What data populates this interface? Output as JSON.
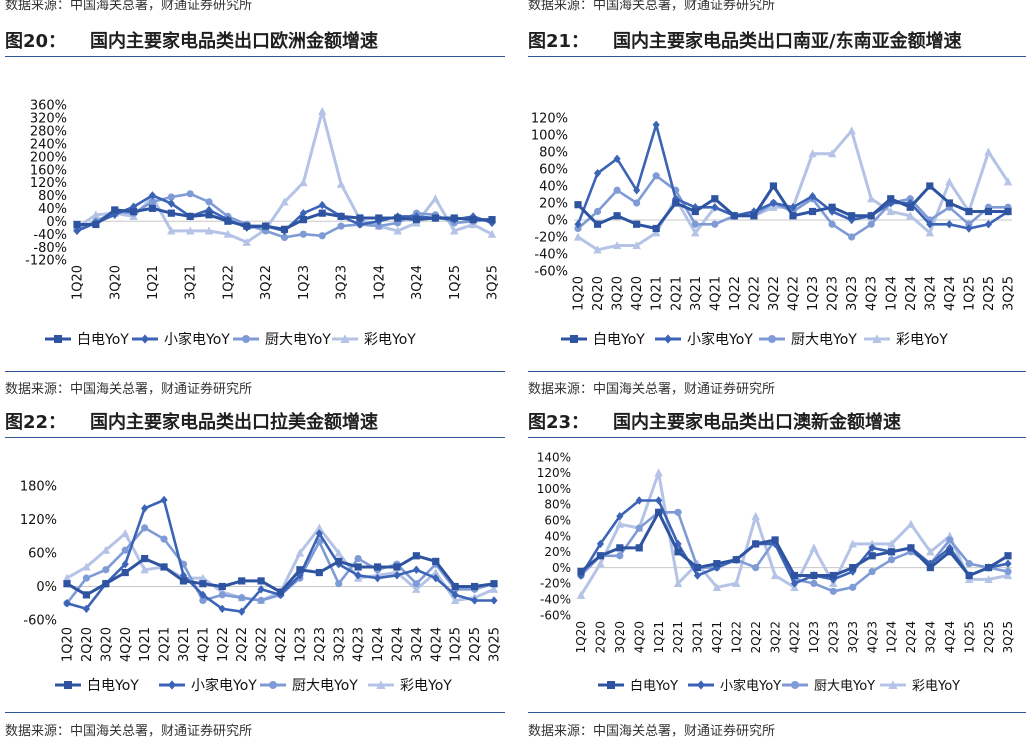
{
  "header_sources": {
    "left": "数据来源：中国海关总署，财通证券研究所",
    "right": "数据来源：中国海关总署，财通证券研究所"
  },
  "series_colors": {
    "白电YoY": "#2e54a1",
    "小家电YoY": "#3b63b6",
    "厨大电YoY": "#7e9bd6",
    "彩电YoY": "#b4c3e6"
  },
  "chart_data": [
    {
      "id": "fig20",
      "number": "图20：",
      "title": "国内主要家电品类出口欧洲金额增速",
      "type": "line",
      "source": "数据来源：中国海关总署，财通证券研究所",
      "x": [
        "1Q20",
        "2Q20",
        "3Q20",
        "4Q20",
        "1Q21",
        "2Q21",
        "3Q21",
        "4Q21",
        "1Q22",
        "2Q22",
        "3Q22",
        "4Q22",
        "1Q23",
        "2Q23",
        "3Q23",
        "4Q23",
        "1Q24",
        "2Q24",
        "3Q24",
        "4Q24",
        "1Q25",
        "2Q25",
        "3Q25"
      ],
      "x_tick_labels": [
        "1Q20",
        "3Q20",
        "1Q21",
        "3Q21",
        "1Q22",
        "3Q22",
        "1Q23",
        "3Q23",
        "1Q24",
        "3Q24",
        "1Q25",
        "3Q25"
      ],
      "ylim": [
        -120,
        360
      ],
      "yticks": [
        -120,
        -80,
        -40,
        0,
        40,
        80,
        120,
        160,
        200,
        240,
        280,
        320,
        360
      ],
      "ytick_labels": [
        "-120%",
        "-80%",
        "-40%",
        "0%",
        "40%",
        "80%",
        "120%",
        "160%",
        "200%",
        "240%",
        "280%",
        "320%",
        "360%"
      ],
      "series": [
        {
          "name": "白电YoY",
          "marker": "square",
          "values": [
            -10,
            -10,
            35,
            30,
            40,
            25,
            15,
            20,
            0,
            -15,
            -15,
            -25,
            5,
            25,
            15,
            10,
            10,
            10,
            5,
            10,
            10,
            5,
            5
          ]
        },
        {
          "name": "小家电YoY",
          "marker": "diamond",
          "values": [
            -30,
            -5,
            20,
            45,
            80,
            55,
            15,
            35,
            5,
            -20,
            -15,
            -30,
            25,
            50,
            15,
            -10,
            0,
            15,
            15,
            10,
            5,
            15,
            -5
          ]
        },
        {
          "name": "厨大电YoY",
          "marker": "circle",
          "values": [
            -25,
            0,
            30,
            25,
            60,
            75,
            85,
            60,
            15,
            -10,
            -30,
            -50,
            -40,
            -45,
            -15,
            -10,
            -15,
            -5,
            25,
            20,
            -5,
            0,
            5
          ]
        },
        {
          "name": "彩电YoY",
          "marker": "triangle",
          "values": [
            -20,
            20,
            25,
            15,
            75,
            -30,
            -30,
            -30,
            -40,
            -65,
            -25,
            60,
            120,
            340,
            115,
            5,
            -15,
            -30,
            -5,
            70,
            -30,
            -10,
            -40
          ]
        }
      ]
    },
    {
      "id": "fig21",
      "number": "图21：",
      "title": "国内主要家电品类出口南亚/东南亚金额增速",
      "type": "line",
      "source": "数据来源：中国海关总署，财通证券研究所",
      "x": [
        "1Q20",
        "2Q20",
        "3Q20",
        "4Q20",
        "1Q21",
        "2Q21",
        "3Q21",
        "4Q21",
        "1Q22",
        "2Q22",
        "3Q22",
        "4Q22",
        "1Q23",
        "2Q23",
        "3Q23",
        "4Q23",
        "1Q24",
        "2Q24",
        "3Q24",
        "4Q24",
        "1Q25",
        "2Q25",
        "3Q25"
      ],
      "x_tick_labels": [
        "1Q20",
        "2Q20",
        "3Q20",
        "4Q20",
        "1Q21",
        "2Q21",
        "3Q21",
        "4Q21",
        "1Q22",
        "2Q22",
        "3Q22",
        "4Q22",
        "1Q23",
        "2Q23",
        "3Q23",
        "4Q23",
        "1Q24",
        "2Q24",
        "3Q24",
        "4Q24",
        "1Q25",
        "2Q25",
        "3Q25"
      ],
      "ylim": [
        -60,
        120
      ],
      "yticks": [
        -60,
        -40,
        -20,
        0,
        20,
        40,
        60,
        80,
        100,
        120
      ],
      "ytick_labels": [
        "-60%",
        "-40%",
        "-20%",
        "0%",
        "20%",
        "40%",
        "60%",
        "80%",
        "100%",
        "120%"
      ],
      "series": [
        {
          "name": "白电YoY",
          "marker": "square",
          "values": [
            18,
            -5,
            5,
            -5,
            -10,
            20,
            10,
            25,
            5,
            5,
            40,
            5,
            10,
            15,
            5,
            5,
            25,
            15,
            40,
            20,
            10,
            10,
            10
          ]
        },
        {
          "name": "小家电YoY",
          "marker": "diamond",
          "values": [
            -5,
            55,
            72,
            35,
            112,
            25,
            15,
            15,
            5,
            10,
            20,
            15,
            28,
            10,
            0,
            5,
            20,
            20,
            -5,
            -5,
            -10,
            -5,
            10
          ]
        },
        {
          "name": "厨大电YoY",
          "marker": "circle",
          "values": [
            -10,
            10,
            35,
            20,
            52,
            35,
            -5,
            -5,
            5,
            5,
            20,
            10,
            25,
            -5,
            -20,
            -5,
            20,
            25,
            0,
            15,
            -5,
            15,
            15
          ]
        },
        {
          "name": "彩电YoY",
          "marker": "triangle",
          "values": [
            -20,
            -35,
            -30,
            -30,
            -15,
            25,
            -15,
            15,
            5,
            5,
            15,
            15,
            78,
            78,
            105,
            25,
            10,
            5,
            -15,
            45,
            10,
            80,
            45
          ]
        }
      ]
    },
    {
      "id": "fig22",
      "number": "图22：",
      "title": "国内主要家电品类出口拉美金额增速",
      "type": "line",
      "source": "数据来源：中国海关总署，财通证券研究所",
      "x": [
        "1Q20",
        "2Q20",
        "3Q20",
        "4Q20",
        "1Q21",
        "2Q21",
        "3Q21",
        "4Q21",
        "1Q22",
        "2Q22",
        "3Q22",
        "4Q22",
        "1Q23",
        "2Q23",
        "3Q23",
        "4Q23",
        "1Q24",
        "2Q24",
        "3Q24",
        "4Q24",
        "1Q25",
        "2Q25",
        "3Q25"
      ],
      "x_tick_labels": [
        "1Q20",
        "2Q20",
        "3Q20",
        "4Q20",
        "1Q21",
        "2Q21",
        "3Q21",
        "4Q21",
        "1Q22",
        "2Q22",
        "3Q22",
        "4Q22",
        "1Q23",
        "2Q23",
        "3Q23",
        "4Q23",
        "1Q24",
        "2Q24",
        "3Q24",
        "4Q24",
        "1Q25",
        "2Q25",
        "3Q25"
      ],
      "ylim": [
        -60,
        180
      ],
      "yticks": [
        -60,
        0,
        60,
        120,
        180
      ],
      "ytick_labels": [
        "-60%",
        "0%",
        "60%",
        "120%",
        "180%"
      ],
      "series": [
        {
          "name": "白电YoY",
          "marker": "square",
          "values": [
            5,
            -15,
            5,
            25,
            50,
            35,
            10,
            5,
            0,
            10,
            10,
            -10,
            30,
            25,
            45,
            35,
            35,
            35,
            55,
            45,
            0,
            0,
            5
          ]
        },
        {
          "name": "小家电YoY",
          "marker": "diamond",
          "values": [
            -30,
            -40,
            5,
            40,
            140,
            155,
            20,
            -15,
            -40,
            -45,
            -5,
            -15,
            20,
            95,
            40,
            20,
            15,
            20,
            30,
            15,
            -15,
            -25,
            -25
          ]
        },
        {
          "name": "厨大电YoY",
          "marker": "circle",
          "values": [
            -30,
            15,
            30,
            65,
            105,
            85,
            40,
            -25,
            -15,
            -20,
            -25,
            -15,
            15,
            80,
            5,
            50,
            30,
            40,
            5,
            40,
            -5,
            -5,
            5
          ]
        },
        {
          "name": "彩电YoY",
          "marker": "triangle",
          "values": [
            15,
            35,
            65,
            95,
            30,
            35,
            15,
            15,
            -10,
            -20,
            -25,
            -10,
            60,
            105,
            60,
            15,
            20,
            25,
            -5,
            25,
            -25,
            -20,
            -5
          ]
        }
      ]
    },
    {
      "id": "fig23",
      "number": "图23：",
      "title": "国内主要家电品类出口澳新金额增速",
      "type": "line",
      "source": "数据来源：中国海关总署，财通证券研究所",
      "x": [
        "1Q20",
        "2Q20",
        "3Q20",
        "4Q20",
        "1Q21",
        "2Q21",
        "3Q21",
        "4Q21",
        "1Q22",
        "2Q22",
        "3Q22",
        "4Q22",
        "1Q23",
        "2Q23",
        "3Q23",
        "4Q23",
        "1Q24",
        "2Q24",
        "3Q24",
        "4Q24",
        "1Q25",
        "2Q25",
        "3Q25"
      ],
      "x_tick_labels": [
        "1Q20",
        "2Q20",
        "3Q20",
        "4Q20",
        "1Q21",
        "2Q21",
        "3Q21",
        "4Q21",
        "1Q22",
        "2Q22",
        "3Q22",
        "4Q22",
        "1Q23",
        "2Q23",
        "3Q23",
        "4Q23",
        "1Q24",
        "2Q24",
        "3Q24",
        "4Q24",
        "1Q25",
        "2Q25",
        "3Q25"
      ],
      "ylim": [
        -60,
        140
      ],
      "yticks": [
        -60,
        -40,
        -20,
        0,
        20,
        40,
        60,
        80,
        100,
        120,
        140
      ],
      "ytick_labels": [
        "-60%",
        "-40%",
        "-20%",
        "0%",
        "20%",
        "40%",
        "60%",
        "80%",
        "100%",
        "120%",
        "140%"
      ],
      "series": [
        {
          "name": "白电YoY",
          "marker": "square",
          "values": [
            -5,
            15,
            25,
            25,
            70,
            20,
            0,
            5,
            10,
            30,
            35,
            -10,
            -10,
            -10,
            0,
            15,
            20,
            25,
            0,
            20,
            -10,
            0,
            15
          ]
        },
        {
          "name": "小家电YoY",
          "marker": "diamond",
          "values": [
            -10,
            30,
            65,
            85,
            85,
            30,
            -10,
            0,
            10,
            30,
            30,
            -20,
            -10,
            -15,
            -5,
            25,
            20,
            25,
            5,
            25,
            -10,
            0,
            5
          ]
        },
        {
          "name": "厨大电YoY",
          "marker": "circle",
          "values": [
            -10,
            15,
            15,
            50,
            70,
            70,
            0,
            0,
            10,
            0,
            35,
            -15,
            -20,
            -30,
            -25,
            -5,
            10,
            20,
            5,
            35,
            5,
            0,
            -5
          ]
        },
        {
          "name": "彩电YoY",
          "marker": "triangle",
          "values": [
            -35,
            5,
            55,
            50,
            120,
            -20,
            5,
            -25,
            -20,
            65,
            -10,
            -25,
            25,
            -20,
            30,
            30,
            30,
            55,
            20,
            40,
            -15,
            -15,
            -10
          ]
        }
      ]
    }
  ]
}
